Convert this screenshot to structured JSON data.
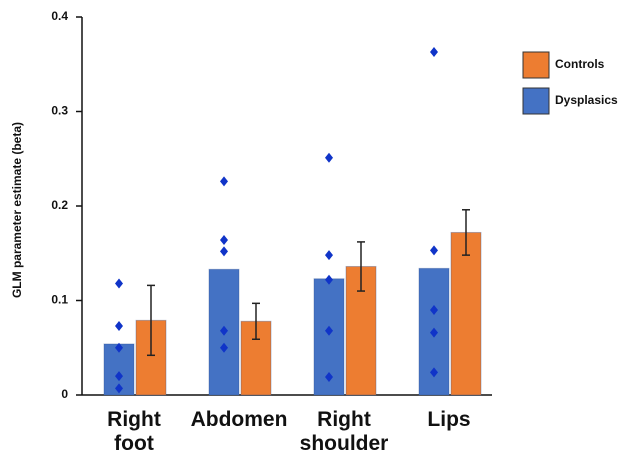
{
  "chart_data": {
    "type": "bar",
    "y_label": "GLM parameter estimate (beta)",
    "categories": [
      "Right foot",
      "Abdomen",
      "Right shoulder",
      "Lips"
    ],
    "series": [
      {
        "name": "Dysplasics",
        "color": "#4472c4",
        "values": [
          0.054,
          0.133,
          0.123,
          0.134
        ],
        "points": [
          [
            0.118,
            0.073,
            0.05,
            0.02,
            0.007
          ],
          [
            0.226,
            0.164,
            0.152,
            0.068,
            0.05
          ],
          [
            0.251,
            0.148,
            0.122,
            0.068,
            0.019
          ],
          [
            0.363,
            0.153,
            0.09,
            0.066,
            0.024
          ]
        ],
        "point_color": "#1034c8"
      },
      {
        "name": "Controls",
        "color": "#ed7d31",
        "values": [
          0.079,
          0.078,
          0.136,
          0.172
        ],
        "errors": [
          0.037,
          0.019,
          0.026,
          0.024
        ]
      }
    ],
    "ylim": [
      0,
      0.4
    ],
    "yticks": [
      0,
      0.1,
      0.2,
      0.3,
      0.4
    ]
  }
}
